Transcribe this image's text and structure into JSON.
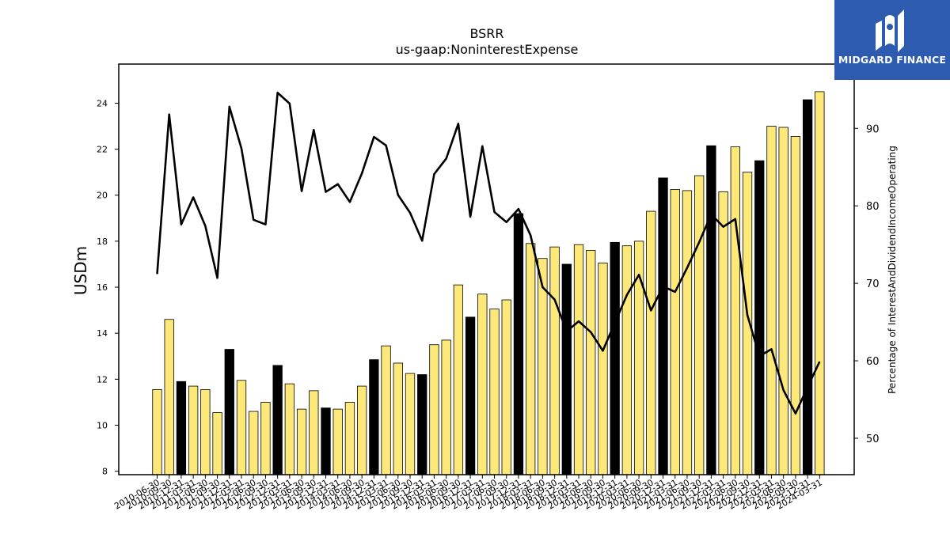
{
  "chart_data": {
    "type": "bar",
    "title": "BSRR",
    "subtitle": "us-gaap:NoninterestExpense",
    "ylabel": "USDm",
    "y2label": "Percentage of InterestAndDividendIncomeOperating",
    "ylim": [
      7.85,
      25.7
    ],
    "y2lim": [
      45.3,
      98.3
    ],
    "yticks": [
      8,
      10,
      12,
      14,
      16,
      18,
      20,
      22,
      24
    ],
    "y2ticks": [
      50,
      60,
      70,
      80,
      90
    ],
    "categories": [
      "2010-06-30",
      "2010-09-30",
      "2010-12-31",
      "2011-03-31",
      "2011-06-30",
      "2011-09-30",
      "2011-12-31",
      "2012-03-31",
      "2012-06-30",
      "2012-09-30",
      "2012-12-31",
      "2013-03-31",
      "2013-06-30",
      "2013-09-30",
      "2013-12-31",
      "2014-03-31",
      "2014-06-30",
      "2014-09-30",
      "2014-12-31",
      "2015-03-31",
      "2015-06-30",
      "2015-09-30",
      "2015-12-31",
      "2016-03-31",
      "2016-06-30",
      "2016-09-30",
      "2016-12-31",
      "2017-03-31",
      "2017-06-30",
      "2017-09-30",
      "2017-12-31",
      "2018-03-31",
      "2018-06-30",
      "2018-09-30",
      "2018-12-31",
      "2019-03-31",
      "2019-06-30",
      "2019-09-30",
      "2019-12-31",
      "2020-03-31",
      "2020-06-30",
      "2020-09-30",
      "2020-12-31",
      "2021-03-31",
      "2021-06-30",
      "2021-09-30",
      "2021-12-31",
      "2022-03-31",
      "2022-06-30",
      "2022-09-30",
      "2022-12-31",
      "2023-03-31",
      "2023-06-30",
      "2023-09-30",
      "2023-12-31",
      "2024-03-31"
    ],
    "series": [
      {
        "type": "bar",
        "axis": "left",
        "values": [
          11.55,
          14.6,
          11.9,
          11.7,
          11.55,
          10.55,
          13.3,
          11.95,
          10.6,
          11.0,
          12.6,
          11.8,
          10.7,
          11.5,
          10.75,
          10.7,
          11.0,
          11.7,
          12.85,
          13.45,
          12.7,
          12.25,
          12.2,
          13.5,
          13.7,
          16.1,
          14.7,
          15.7,
          15.05,
          15.45,
          19.2,
          17.9,
          17.25,
          17.75,
          17.0,
          17.85,
          17.6,
          17.05,
          17.95,
          17.8,
          18.0,
          19.3,
          20.75,
          20.25,
          20.2,
          20.85,
          22.15,
          20.15,
          22.1,
          21.0,
          21.5,
          23.0,
          22.95,
          22.55,
          24.15,
          24.5
        ],
        "highlight": [
          false,
          false,
          true,
          false,
          false,
          false,
          true,
          false,
          false,
          false,
          true,
          false,
          false,
          false,
          true,
          false,
          false,
          false,
          true,
          false,
          false,
          false,
          true,
          false,
          false,
          false,
          true,
          false,
          false,
          false,
          true,
          false,
          false,
          false,
          true,
          false,
          false,
          false,
          true,
          false,
          false,
          false,
          true,
          false,
          false,
          false,
          true,
          false,
          false,
          false,
          true,
          false,
          false,
          false,
          true,
          false
        ]
      },
      {
        "type": "line",
        "axis": "right",
        "values": [
          71.2,
          91.8,
          77.6,
          81.1,
          77.4,
          70.7,
          92.8,
          87.4,
          78.2,
          77.6,
          94.6,
          93.2,
          81.9,
          89.8,
          81.8,
          82.8,
          80.5,
          84.2,
          88.9,
          87.8,
          81.4,
          79.1,
          75.5,
          84.1,
          86.1,
          90.6,
          78.6,
          87.7,
          79.2,
          77.9,
          79.6,
          76.2,
          69.5,
          67.9,
          63.8,
          65.1,
          63.7,
          61.3,
          64.9,
          68.5,
          71.1,
          66.5,
          69.6,
          68.9,
          72.0,
          75.3,
          78.9,
          77.3,
          78.3,
          65.9,
          60.6,
          61.5,
          56.2,
          53.2,
          56.6,
          59.9
        ]
      }
    ],
    "colors": {
      "bar": "#fde97a",
      "bar_highlight": "#000000",
      "line": "#000000",
      "axes": "#000000"
    },
    "grid": false,
    "legend": "none"
  },
  "logo": {
    "text": "MIDGARD FINANCE",
    "color": "#2c5bb0"
  }
}
